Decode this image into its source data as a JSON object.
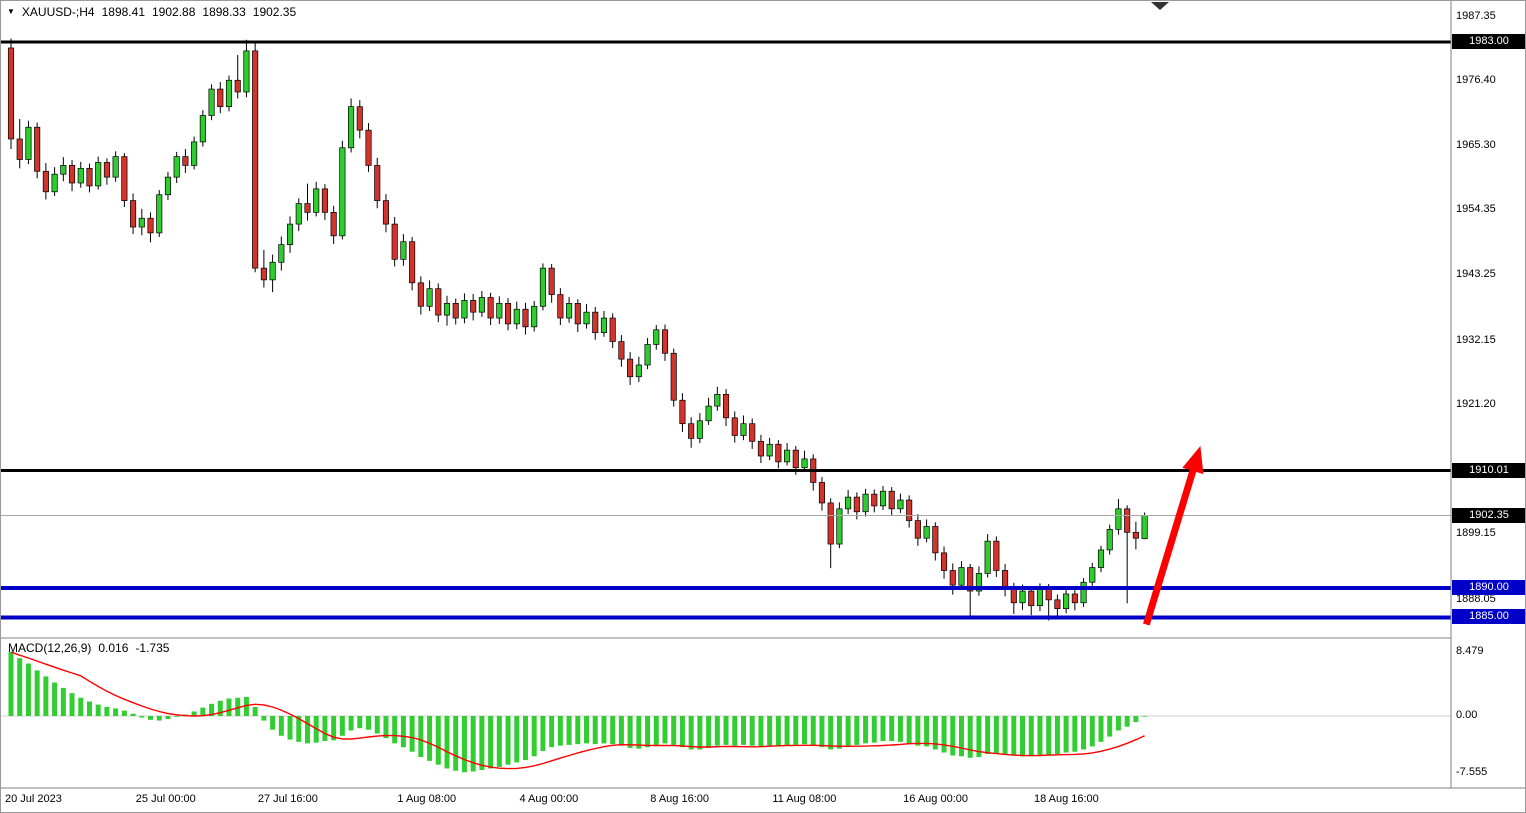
{
  "header": {
    "menu_icon_glyph": "▼",
    "symbol_timeframe": "XAUUSD-;H4",
    "open": "1898.41",
    "high": "1902.88",
    "low": "1898.33",
    "close": "1902.35"
  },
  "macd_panel": {
    "name": "MACD(12,26,9)",
    "value": "0.016",
    "signal": "-1.735"
  },
  "axis": {
    "price_ticks": [
      {
        "price": 1987.35,
        "label": "1987.35"
      },
      {
        "price": 1976.4,
        "label": "1976.40"
      },
      {
        "price": 1965.3,
        "label": "1965.30"
      },
      {
        "price": 1954.35,
        "label": "1954.35"
      },
      {
        "price": 1943.25,
        "label": "1943.25"
      },
      {
        "price": 1932.15,
        "label": "1932.15"
      },
      {
        "price": 1921.2,
        "label": "1921.20"
      },
      {
        "price": 1899.15,
        "label": "1899.15"
      },
      {
        "price": 1888.05,
        "label": "1888.05"
      }
    ],
    "price_badges": [
      {
        "price": 1983.0,
        "label": "1983.00",
        "bg": "#000000"
      },
      {
        "price": 1910.01,
        "label": "1910.01",
        "bg": "#000000"
      },
      {
        "price": 1902.35,
        "label": "1902.35",
        "bg": "#000000"
      },
      {
        "price": 1890.0,
        "label": "1890.00",
        "bg": "#0000C8"
      },
      {
        "price": 1885.0,
        "label": "1885.00",
        "bg": "#0000C8"
      }
    ],
    "macd_ticks": [
      {
        "value": 8.479,
        "label": "8.479"
      },
      {
        "value": 0,
        "label": "0.00"
      },
      {
        "value": -7.555,
        "label": "-7.555"
      }
    ],
    "time_ticks": [
      {
        "i": 0,
        "label": "20 Jul 2023"
      },
      {
        "i": 15,
        "label": "25 Jul 00:00"
      },
      {
        "i": 29,
        "label": "27 Jul 16:00"
      },
      {
        "i": 45,
        "label": "1 Aug 08:00"
      },
      {
        "i": 59,
        "label": "4 Aug 00:00"
      },
      {
        "i": 74,
        "label": "8 Aug 16:00"
      },
      {
        "i": 88,
        "label": "11 Aug 08:00"
      },
      {
        "i": 103,
        "label": "16 Aug 00:00"
      },
      {
        "i": 118,
        "label": "18 Aug 16:00"
      }
    ]
  },
  "colors": {
    "background": "#FFFFFF",
    "up_candle": "#2FCC2F",
    "down_candle": "#D0342C",
    "candle_outline": "#000000",
    "wick": "#000000",
    "macd_histogram": "#32CD32",
    "macd_signal": "#FF0000",
    "macd_zero_line": "#D0D0D0",
    "separator": "#808080",
    "arrow": "#FF0000",
    "shift_marker": "#333333"
  },
  "annotations": {
    "trend_arrow": {
      "from_index": 130.2,
      "from_price": 1883.8,
      "to_index": 136.4,
      "to_price": 1914.2,
      "color": "#FF0000"
    },
    "shift_marker_x": 1159
  },
  "chart_data": {
    "type": "candlestick",
    "symbol": "XAUUSD",
    "timeframe": "H4",
    "title": "XAUUSD-;H4 1898.41 1902.88 1898.33 1902.35",
    "ylim": [
      1881.5,
      1990.0
    ],
    "candles": [
      [
        1982.0,
        1983.6,
        1964.8,
        1966.5
      ],
      [
        1966.5,
        1969.9,
        1961.5,
        1963.0
      ],
      [
        1963.0,
        1969.6,
        1962.2,
        1968.5
      ],
      [
        1968.5,
        1969.3,
        1959.8,
        1961.0
      ],
      [
        1961.0,
        1962.4,
        1956.2,
        1957.5
      ],
      [
        1957.5,
        1961.7,
        1956.8,
        1960.5
      ],
      [
        1960.5,
        1963.4,
        1959.3,
        1962.0
      ],
      [
        1962.0,
        1962.9,
        1957.6,
        1959.0
      ],
      [
        1959.0,
        1962.6,
        1958.2,
        1961.5
      ],
      [
        1961.5,
        1962.3,
        1957.4,
        1958.5
      ],
      [
        1958.5,
        1963.5,
        1957.9,
        1962.5
      ],
      [
        1962.5,
        1963.2,
        1958.7,
        1960.0
      ],
      [
        1960.0,
        1964.4,
        1959.2,
        1963.5
      ],
      [
        1963.5,
        1964.1,
        1954.9,
        1956.0
      ],
      [
        1956.0,
        1957.2,
        1950.3,
        1951.5
      ],
      [
        1951.5,
        1954.6,
        1950.1,
        1953.0
      ],
      [
        1953.0,
        1954.0,
        1948.9,
        1950.5
      ],
      [
        1950.5,
        1957.8,
        1949.8,
        1957.0
      ],
      [
        1957.0,
        1960.9,
        1956.1,
        1960.0
      ],
      [
        1960.0,
        1964.3,
        1959.0,
        1963.5
      ],
      [
        1963.5,
        1964.8,
        1960.7,
        1962.0
      ],
      [
        1962.0,
        1966.9,
        1961.3,
        1966.0
      ],
      [
        1966.0,
        1971.4,
        1965.2,
        1970.5
      ],
      [
        1970.5,
        1975.8,
        1969.7,
        1975.0
      ],
      [
        1975.0,
        1976.2,
        1970.9,
        1972.0
      ],
      [
        1972.0,
        1977.3,
        1971.2,
        1976.5
      ],
      [
        1976.5,
        1980.8,
        1973.4,
        1974.5
      ],
      [
        1974.5,
        1983.4,
        1973.6,
        1981.5
      ],
      [
        1981.5,
        1983.2,
        1943.8,
        1944.5
      ],
      [
        1944.5,
        1947.6,
        1941.2,
        1942.5
      ],
      [
        1942.5,
        1946.8,
        1940.4,
        1945.5
      ],
      [
        1945.5,
        1949.9,
        1944.1,
        1948.5
      ],
      [
        1948.5,
        1953.3,
        1947.1,
        1952.0
      ],
      [
        1952.0,
        1956.4,
        1950.8,
        1955.5
      ],
      [
        1955.5,
        1958.9,
        1952.6,
        1954.0
      ],
      [
        1954.0,
        1959.2,
        1953.3,
        1958.0
      ],
      [
        1958.0,
        1958.8,
        1952.7,
        1954.0
      ],
      [
        1954.0,
        1955.1,
        1948.6,
        1950.0
      ],
      [
        1950.0,
        1966.2,
        1949.4,
        1965.0
      ],
      [
        1965.0,
        1973.4,
        1964.2,
        1972.0
      ],
      [
        1972.0,
        1973.1,
        1966.6,
        1968.0
      ],
      [
        1968.0,
        1969.2,
        1960.9,
        1962.0
      ],
      [
        1962.0,
        1963.3,
        1954.7,
        1956.0
      ],
      [
        1956.0,
        1957.1,
        1950.6,
        1952.0
      ],
      [
        1952.0,
        1953.2,
        1944.8,
        1946.0
      ],
      [
        1946.0,
        1950.3,
        1944.9,
        1949.0
      ],
      [
        1949.0,
        1949.8,
        1940.7,
        1942.0
      ],
      [
        1942.0,
        1943.1,
        1936.6,
        1938.0
      ],
      [
        1938.0,
        1942.4,
        1937.2,
        1941.0
      ],
      [
        1941.0,
        1941.9,
        1935.3,
        1936.5
      ],
      [
        1936.5,
        1939.8,
        1934.7,
        1938.5
      ],
      [
        1938.5,
        1939.3,
        1934.9,
        1936.0
      ],
      [
        1936.0,
        1940.2,
        1935.1,
        1939.0
      ],
      [
        1939.0,
        1940.1,
        1935.6,
        1937.0
      ],
      [
        1937.0,
        1940.6,
        1936.2,
        1939.5
      ],
      [
        1939.5,
        1940.3,
        1934.8,
        1936.0
      ],
      [
        1936.0,
        1939.7,
        1935.0,
        1938.5
      ],
      [
        1938.5,
        1939.4,
        1933.9,
        1935.0
      ],
      [
        1935.0,
        1938.8,
        1934.1,
        1937.5
      ],
      [
        1937.5,
        1938.6,
        1933.2,
        1934.5
      ],
      [
        1934.5,
        1938.9,
        1933.7,
        1938.0
      ],
      [
        1938.0,
        1945.3,
        1937.3,
        1944.5
      ],
      [
        1944.5,
        1945.2,
        1938.6,
        1940.0
      ],
      [
        1940.0,
        1941.1,
        1934.8,
        1936.0
      ],
      [
        1936.0,
        1939.6,
        1935.2,
        1938.5
      ],
      [
        1938.5,
        1939.2,
        1933.6,
        1935.0
      ],
      [
        1935.0,
        1938.4,
        1934.2,
        1937.0
      ],
      [
        1937.0,
        1937.9,
        1932.3,
        1933.5
      ],
      [
        1933.5,
        1937.2,
        1932.8,
        1936.0
      ],
      [
        1936.0,
        1936.8,
        1930.9,
        1932.0
      ],
      [
        1932.0,
        1933.1,
        1927.7,
        1929.0
      ],
      [
        1929.0,
        1930.2,
        1924.6,
        1926.0
      ],
      [
        1926.0,
        1929.4,
        1925.1,
        1928.0
      ],
      [
        1928.0,
        1932.6,
        1927.3,
        1931.5
      ],
      [
        1931.5,
        1934.8,
        1930.6,
        1934.0
      ],
      [
        1934.0,
        1934.9,
        1928.7,
        1930.0
      ],
      [
        1930.0,
        1930.8,
        1920.9,
        1922.0
      ],
      [
        1922.0,
        1923.2,
        1916.6,
        1918.0
      ],
      [
        1918.0,
        1919.1,
        1913.9,
        1915.5
      ],
      [
        1915.5,
        1919.8,
        1914.7,
        1918.5
      ],
      [
        1918.5,
        1922.4,
        1917.8,
        1921.0
      ],
      [
        1921.0,
        1924.3,
        1920.2,
        1923.0
      ],
      [
        1923.0,
        1923.9,
        1917.6,
        1919.0
      ],
      [
        1919.0,
        1920.1,
        1914.8,
        1916.0
      ],
      [
        1916.0,
        1919.4,
        1915.2,
        1918.0
      ],
      [
        1918.0,
        1918.9,
        1913.7,
        1915.0
      ],
      [
        1915.0,
        1916.1,
        1911.3,
        1912.5
      ],
      [
        1912.5,
        1915.6,
        1911.8,
        1914.5
      ],
      [
        1914.5,
        1915.2,
        1910.4,
        1911.5
      ],
      [
        1911.5,
        1914.7,
        1910.9,
        1913.5
      ],
      [
        1913.5,
        1914.2,
        1909.3,
        1910.5
      ],
      [
        1910.5,
        1913.4,
        1909.8,
        1912.0
      ],
      [
        1912.0,
        1912.8,
        1906.6,
        1908.0
      ],
      [
        1908.0,
        1908.9,
        1903.2,
        1904.5
      ],
      [
        1904.5,
        1905.3,
        1893.4,
        1897.5
      ],
      [
        1897.5,
        1904.6,
        1896.8,
        1903.5
      ],
      [
        1903.5,
        1906.7,
        1902.6,
        1905.5
      ],
      [
        1905.5,
        1906.3,
        1901.7,
        1903.0
      ],
      [
        1903.0,
        1906.9,
        1902.2,
        1906.0
      ],
      [
        1906.0,
        1906.8,
        1902.9,
        1904.0
      ],
      [
        1904.0,
        1907.4,
        1903.3,
        1906.5
      ],
      [
        1906.5,
        1907.2,
        1902.4,
        1903.5
      ],
      [
        1903.5,
        1906.1,
        1902.8,
        1905.0
      ],
      [
        1905.0,
        1905.8,
        1900.3,
        1901.5
      ],
      [
        1901.5,
        1902.6,
        1897.2,
        1898.5
      ],
      [
        1898.5,
        1901.7,
        1897.8,
        1900.5
      ],
      [
        1900.5,
        1901.2,
        1894.7,
        1896.0
      ],
      [
        1896.0,
        1897.1,
        1891.6,
        1893.0
      ],
      [
        1893.0,
        1894.2,
        1888.9,
        1890.5
      ],
      [
        1890.5,
        1894.6,
        1889.8,
        1893.5
      ],
      [
        1893.5,
        1894.1,
        1884.9,
        1889.5
      ],
      [
        1889.5,
        1893.7,
        1888.7,
        1892.5
      ],
      [
        1892.5,
        1899.2,
        1891.8,
        1898.0
      ],
      [
        1898.0,
        1898.8,
        1891.9,
        1893.0
      ],
      [
        1893.0,
        1894.1,
        1888.6,
        1890.0
      ],
      [
        1890.0,
        1890.9,
        1885.6,
        1887.5
      ],
      [
        1887.5,
        1890.6,
        1886.3,
        1889.5
      ],
      [
        1889.5,
        1890.2,
        1885.4,
        1887.0
      ],
      [
        1887.0,
        1890.8,
        1886.1,
        1890.0
      ],
      [
        1890.0,
        1890.7,
        1884.5,
        1888.0
      ],
      [
        1888.0,
        1888.9,
        1885.2,
        1886.5
      ],
      [
        1886.5,
        1889.9,
        1885.7,
        1889.0
      ],
      [
        1889.0,
        1889.8,
        1886.2,
        1887.5
      ],
      [
        1887.5,
        1891.7,
        1886.8,
        1891.0
      ],
      [
        1891.0,
        1894.3,
        1890.2,
        1893.5
      ],
      [
        1893.5,
        1897.2,
        1892.7,
        1896.5
      ],
      [
        1896.5,
        1900.8,
        1895.7,
        1900.0
      ],
      [
        1900.0,
        1905.2,
        1899.1,
        1903.5
      ],
      [
        1903.5,
        1904.1,
        1887.4,
        1899.5
      ],
      [
        1899.5,
        1901.3,
        1896.6,
        1898.5
      ],
      [
        1898.41,
        1902.88,
        1898.33,
        1902.35
      ]
    ],
    "macd": {
      "params": "12,26,9",
      "ylim": [
        -9.47,
        10.26
      ],
      "signal_sma_period": 9,
      "histogram": [
        8.4,
        7.6,
        6.9,
        6.0,
        5.2,
        4.4,
        3.7,
        3.0,
        2.4,
        1.9,
        1.5,
        1.2,
        1.0,
        0.7,
        0.3,
        -0.2,
        -0.5,
        -0.6,
        -0.4,
        -0.1,
        0.2,
        0.6,
        1.1,
        1.6,
        2.0,
        2.3,
        2.4,
        2.5,
        1.2,
        -0.6,
        -1.8,
        -2.6,
        -3.1,
        -3.4,
        -3.6,
        -3.5,
        -3.3,
        -3.2,
        -2.6,
        -1.9,
        -1.6,
        -1.8,
        -2.3,
        -2.9,
        -3.6,
        -4.1,
        -4.7,
        -5.4,
        -5.9,
        -6.4,
        -6.9,
        -7.2,
        -7.4,
        -7.3,
        -7.1,
        -6.9,
        -6.7,
        -6.4,
        -6.1,
        -5.8,
        -5.3,
        -4.6,
        -4.1,
        -3.9,
        -3.8,
        -3.7,
        -3.6,
        -3.7,
        -3.6,
        -3.7,
        -3.9,
        -4.2,
        -4.3,
        -4.1,
        -3.8,
        -3.6,
        -3.8,
        -4.1,
        -4.4,
        -4.4,
        -4.2,
        -3.9,
        -3.8,
        -3.9,
        -3.8,
        -3.9,
        -4.0,
        -3.9,
        -3.9,
        -3.8,
        -3.8,
        -3.7,
        -3.9,
        -4.1,
        -4.4,
        -4.3,
        -4.0,
        -3.8,
        -3.6,
        -3.5,
        -3.3,
        -3.3,
        -3.4,
        -3.6,
        -3.9,
        -4.0,
        -4.4,
        -4.8,
        -5.2,
        -5.3,
        -5.5,
        -5.4,
        -5.0,
        -4.9,
        -5.0,
        -5.2,
        -5.3,
        -5.3,
        -5.1,
        -5.1,
        -5.0,
        -4.8,
        -4.7,
        -4.4,
        -4.0,
        -3.4,
        -2.7,
        -1.9,
        -1.4,
        -0.8,
        0.016
      ]
    },
    "levels": [
      {
        "price": 1983.0,
        "color": "#000000",
        "width": 3
      },
      {
        "price": 1910.01,
        "color": "#000000",
        "width": 3
      },
      {
        "price": 1890.0,
        "color": "#0000C8",
        "width": 4
      },
      {
        "price": 1885.0,
        "color": "#0000C8",
        "width": 4
      }
    ],
    "current_price_line": {
      "price": 1902.35,
      "color": "#A8A8A8",
      "width": 1
    }
  }
}
